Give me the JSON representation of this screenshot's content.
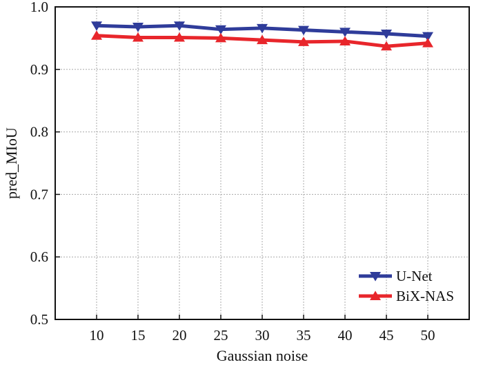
{
  "chart_data": {
    "type": "line",
    "title": "",
    "xlabel": "Gaussian noise",
    "ylabel": "pred_MIoU",
    "x": [
      10,
      15,
      20,
      25,
      30,
      35,
      40,
      45,
      50
    ],
    "xticks": [
      "10",
      "15",
      "20",
      "25",
      "30",
      "35",
      "40",
      "45",
      "50"
    ],
    "yticks": [
      "0.5",
      "0.6",
      "0.7",
      "0.8",
      "0.9",
      "1.0"
    ],
    "xlim": [
      5,
      55
    ],
    "ylim": [
      0.5,
      1.0
    ],
    "grid": true,
    "legend_position": "bottom-right",
    "series": [
      {
        "name": "U-Net",
        "color": "#2f3c9a",
        "marker": "triangle-down",
        "values": [
          0.97,
          0.968,
          0.97,
          0.964,
          0.966,
          0.963,
          0.96,
          0.957,
          0.953
        ]
      },
      {
        "name": "BiX-NAS",
        "color": "#e8262b",
        "marker": "triangle-up",
        "values": [
          0.954,
          0.951,
          0.951,
          0.95,
          0.947,
          0.944,
          0.945,
          0.937,
          0.942
        ]
      }
    ]
  }
}
